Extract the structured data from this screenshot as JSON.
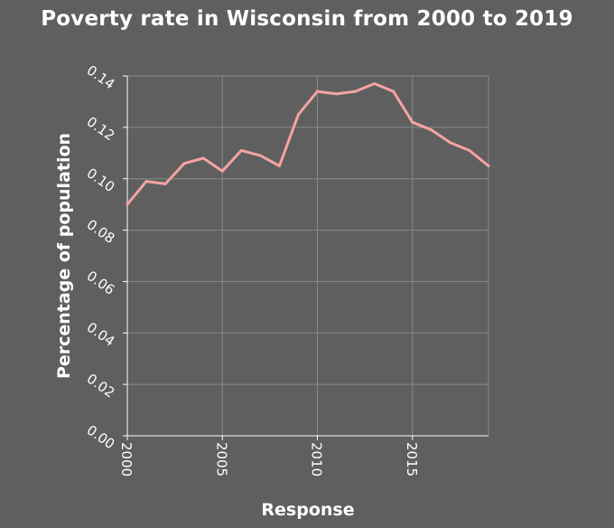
{
  "chart_data": {
    "type": "line",
    "title": "Poverty rate in Wisconsin from 2000 to 2019",
    "xlabel": "Response",
    "ylabel": "Percentage of population",
    "xlim": [
      2000,
      2019
    ],
    "ylim": [
      0,
      0.14
    ],
    "x_ticks": [
      2000,
      2005,
      2010,
      2015
    ],
    "x_tick_labels": [
      "2000",
      "2005",
      "2010",
      "2015"
    ],
    "y_ticks": [
      0,
      0.02,
      0.04,
      0.06,
      0.08,
      0.1,
      0.12,
      0.14
    ],
    "y_tick_labels": [
      "0.00",
      "0.02",
      "0.04",
      "0.06",
      "0.08",
      "0.10",
      "0.12",
      "0.14"
    ],
    "grid": true,
    "series": [
      {
        "color": "#f4a3a3",
        "x": [
          2000,
          2001,
          2002,
          2003,
          2004,
          2005,
          2006,
          2007,
          2008,
          2009,
          2010,
          2011,
          2012,
          2013,
          2014,
          2015,
          2016,
          2017,
          2018,
          2019
        ],
        "y": [
          0.09,
          0.099,
          0.098,
          0.106,
          0.108,
          0.103,
          0.111,
          0.109,
          0.105,
          0.125,
          0.134,
          0.133,
          0.134,
          0.137,
          0.134,
          0.122,
          0.119,
          0.114,
          0.111,
          0.105
        ]
      }
    ]
  },
  "colors": {
    "background": "#5f5f5f",
    "grid": "#8a8a8a",
    "axis": "#ffffff",
    "text": "#ffffff"
  }
}
